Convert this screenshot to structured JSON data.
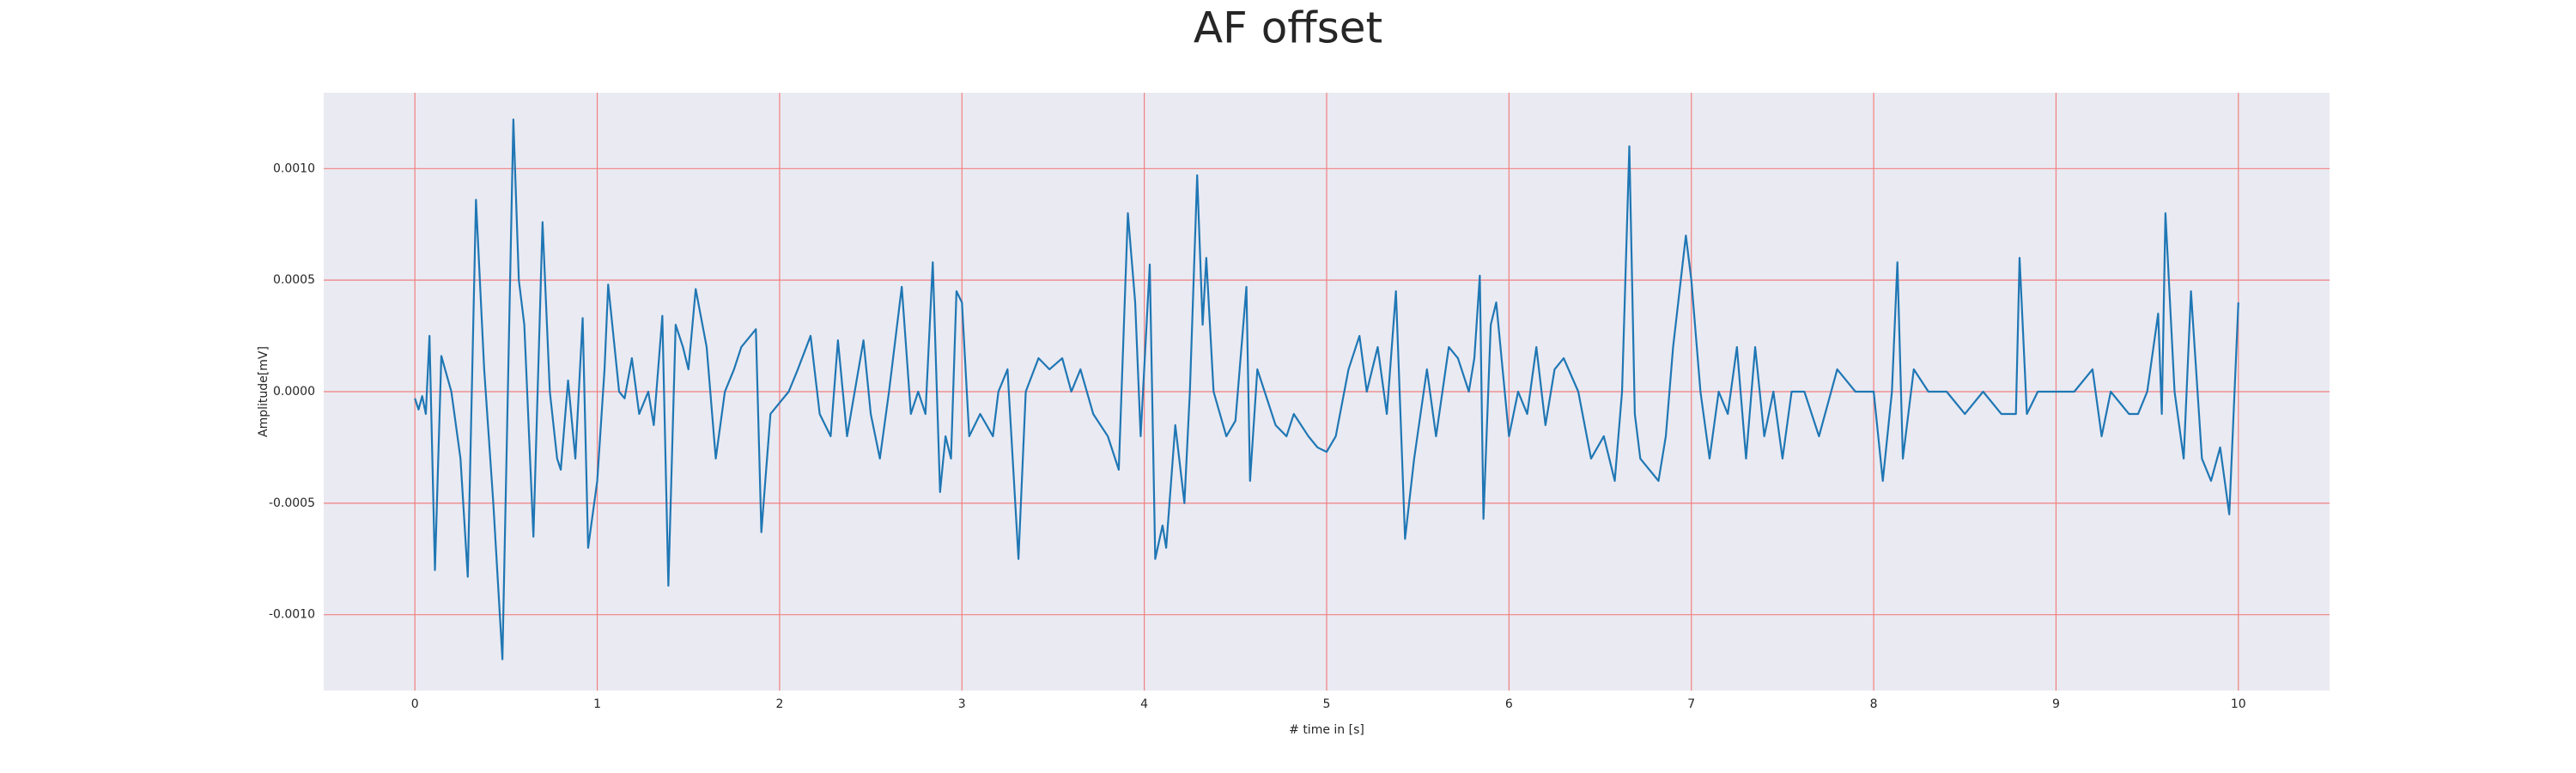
{
  "chart_data": {
    "type": "line",
    "title": "AF offset",
    "x_label": "# time in [s]",
    "y_label": "Amplitude[mV]",
    "color": "#1f77b4",
    "background": "#eaeaf2",
    "grid_color": "#f08080",
    "grid": true,
    "xlim": [
      -0.5,
      10.5
    ],
    "ylim": [
      -0.00134,
      0.00134
    ],
    "xticks": [
      0,
      1,
      2,
      3,
      4,
      5,
      6,
      7,
      8,
      9,
      10
    ],
    "yticks": [
      {
        "value": -0.001,
        "label": "-0.0010"
      },
      {
        "value": -0.0005,
        "label": "-0.0005"
      },
      {
        "value": 0,
        "label": "0.0000"
      },
      {
        "value": 0.0005,
        "label": "0.0005"
      },
      {
        "value": 0.001,
        "label": "0.0010"
      }
    ],
    "x": [
      0,
      0.02,
      0.04,
      0.06,
      0.08,
      0.11,
      0.145,
      0.2,
      0.25,
      0.29,
      0.335,
      0.38,
      0.43,
      0.48,
      0.54,
      0.57,
      0.6,
      0.65,
      0.7,
      0.74,
      0.78,
      0.8,
      0.84,
      0.88,
      0.92,
      0.95,
      1.0,
      1.04,
      1.06,
      1.12,
      1.15,
      1.19,
      1.23,
      1.28,
      1.31,
      1.357,
      1.39,
      1.43,
      1.47,
      1.5,
      1.54,
      1.6,
      1.65,
      1.7,
      1.75,
      1.79,
      1.87,
      1.9,
      1.95,
      2.0,
      2.05,
      2.1,
      2.17,
      2.22,
      2.28,
      2.32,
      2.37,
      2.46,
      2.5,
      2.55,
      2.6,
      2.67,
      2.72,
      2.76,
      2.8,
      2.84,
      2.88,
      2.91,
      2.94,
      2.97,
      3.0,
      3.04,
      3.1,
      3.17,
      3.2,
      3.25,
      3.31,
      3.35,
      3.42,
      3.48,
      3.55,
      3.6,
      3.65,
      3.72,
      3.8,
      3.86,
      3.91,
      3.95,
      3.98,
      4.03,
      4.06,
      4.1,
      4.12,
      4.17,
      4.22,
      4.25,
      4.29,
      4.32,
      4.34,
      4.38,
      4.45,
      4.5,
      4.56,
      4.58,
      4.62,
      4.66,
      4.72,
      4.78,
      4.82,
      4.9,
      4.95,
      5.0,
      5.05,
      5.12,
      5.18,
      5.22,
      5.28,
      5.33,
      5.38,
      5.43,
      5.48,
      5.55,
      5.6,
      5.67,
      5.72,
      5.78,
      5.81,
      5.84,
      5.86,
      5.9,
      5.93,
      6.0,
      6.05,
      6.1,
      6.15,
      6.2,
      6.25,
      6.3,
      6.38,
      6.45,
      6.52,
      6.58,
      6.62,
      6.66,
      6.69,
      6.72,
      6.77,
      6.82,
      6.86,
      6.9,
      6.97,
      7.0,
      7.05,
      7.1,
      7.15,
      7.2,
      7.25,
      7.3,
      7.35,
      7.4,
      7.45,
      7.5,
      7.55,
      7.62,
      7.7,
      7.8,
      7.9,
      8.0,
      8.05,
      8.1,
      8.13,
      8.16,
      8.22,
      8.3,
      8.4,
      8.5,
      8.6,
      8.7,
      8.78,
      8.8,
      8.84,
      8.9,
      9.0,
      9.1,
      9.2,
      9.25,
      9.3,
      9.4,
      9.45,
      9.5,
      9.56,
      9.58,
      9.6,
      9.65,
      9.7,
      9.74,
      9.8,
      9.85,
      9.9,
      9.95,
      10.0
    ],
    "values": [
      -3e-05,
      -8e-05,
      -2e-05,
      -0.0001,
      0.00025,
      -0.0008,
      0.00016,
      0.0,
      -0.0003,
      -0.00083,
      0.00086,
      0.0001,
      -0.0005,
      -0.0012,
      0.00122,
      0.0005,
      0.0003,
      -0.00065,
      0.00076,
      0.0,
      -0.0003,
      -0.00035,
      5e-05,
      -0.0003,
      0.00033,
      -0.0007,
      -0.0004,
      0.0001,
      0.00048,
      0.0,
      -3e-05,
      0.00015,
      -0.0001,
      0.0,
      -0.00015,
      0.00034,
      -0.00087,
      0.0003,
      0.0002,
      0.0001,
      0.00046,
      0.0002,
      -0.0003,
      0.0,
      0.0001,
      0.0002,
      0.00028,
      -0.00063,
      -0.0001,
      -5e-05,
      0.0,
      0.0001,
      0.00025,
      -0.0001,
      -0.0002,
      0.00023,
      -0.0002,
      0.00023,
      -0.0001,
      -0.0003,
      0.0,
      0.00047,
      -0.0001,
      0.0,
      -0.0001,
      0.00058,
      -0.00045,
      -0.0002,
      -0.0003,
      0.00045,
      0.0004,
      -0.0002,
      -0.0001,
      -0.0002,
      0.0,
      0.0001,
      -0.00075,
      0.0,
      0.00015,
      0.0001,
      0.00015,
      0.0,
      0.0001,
      -0.0001,
      -0.0002,
      -0.00035,
      0.0008,
      0.0004,
      -0.0002,
      0.00057,
      -0.00075,
      -0.0006,
      -0.0007,
      -0.00015,
      -0.0005,
      0.0,
      0.00097,
      0.0003,
      0.0006,
      0.0,
      -0.0002,
      -0.00013,
      0.00047,
      -0.0004,
      0.0001,
      0.0,
      -0.00015,
      -0.0002,
      -0.0001,
      -0.0002,
      -0.00025,
      -0.00027,
      -0.0002,
      0.0001,
      0.00025,
      0.0,
      0.0002,
      -0.0001,
      0.00045,
      -0.00066,
      -0.0003,
      0.0001,
      -0.0002,
      0.0002,
      0.00015,
      0.0,
      0.00015,
      0.00052,
      -0.00057,
      0.0003,
      0.0004,
      -0.0002,
      0.0,
      -0.0001,
      0.0002,
      -0.00015,
      0.0001,
      0.00015,
      0.0,
      -0.0003,
      -0.0002,
      -0.0004,
      0.0,
      0.0011,
      -0.0001,
      -0.0003,
      -0.00035,
      -0.0004,
      -0.0002,
      0.0002,
      0.0007,
      0.0005,
      0.0,
      -0.0003,
      0.0,
      -0.0001,
      0.0002,
      -0.0003,
      0.0002,
      -0.0002,
      0.0,
      -0.0003,
      0.0,
      0.0,
      -0.0002,
      0.0001,
      0.0,
      0.0,
      -0.0004,
      0.0,
      0.00058,
      -0.0003,
      0.0001,
      0.0,
      0.0,
      -0.0001,
      0.0,
      -0.0001,
      -0.0001,
      0.0006,
      -0.0001,
      0.0,
      0.0,
      0.0,
      0.0001,
      -0.0002,
      0.0,
      -0.0001,
      -0.0001,
      0.0,
      0.00035,
      -0.0001,
      0.0008,
      0.0,
      -0.0003,
      0.00045,
      -0.0003,
      -0.0004,
      -0.00025,
      -0.00055,
      0.0004
    ]
  }
}
